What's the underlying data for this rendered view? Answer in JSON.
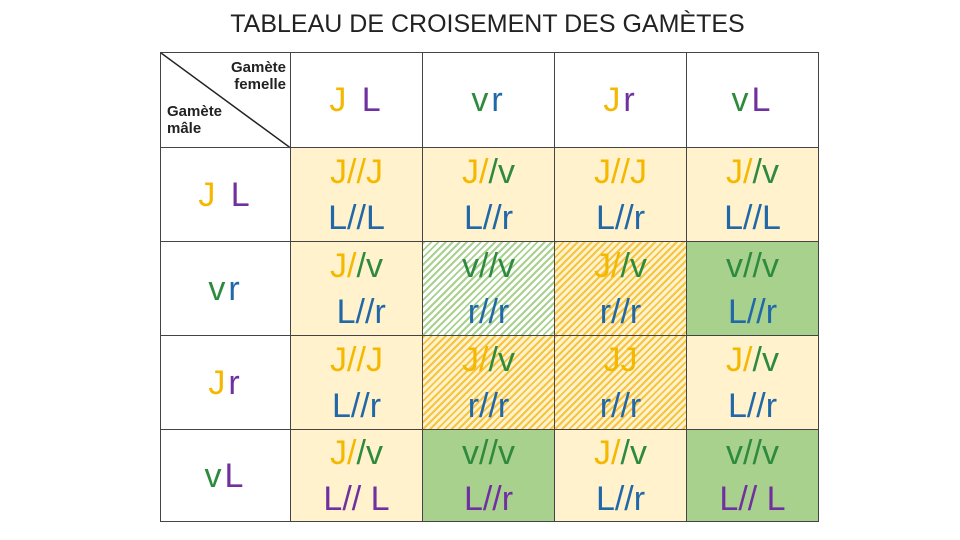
{
  "title": "TABLEAU DE CROISEMENT DES GAMÈTES",
  "table": {
    "corner": {
      "female": "Gamète femelle",
      "male": "Gamète mâle"
    },
    "columns": [
      [
        {
          "t": "J",
          "c": "#f5b800"
        },
        {
          "t": " L",
          "c": "#7030a0"
        }
      ],
      [
        {
          "t": "v",
          "c": "#2e8b3e"
        },
        {
          "t": "r",
          "c": "#2068a8"
        }
      ],
      [
        {
          "t": "J",
          "c": "#f5b800"
        },
        {
          "t": "r",
          "c": "#7030a0"
        }
      ],
      [
        {
          "t": "v",
          "c": "#2e8b3e"
        },
        {
          "t": "L",
          "c": "#7030a0"
        }
      ]
    ],
    "rows": [
      {
        "header": [
          {
            "t": "J",
            "c": "#f5b800"
          },
          {
            "t": " L",
            "c": "#7030a0"
          }
        ],
        "cells": [
          {
            "fill": "cream",
            "lines": [
              [
                {
                  "t": "J//J",
                  "c": "#f5b800"
                }
              ],
              [
                {
                  "t": "L//L",
                  "c": "#2068a8"
                }
              ]
            ]
          },
          {
            "fill": "cream",
            "lines": [
              [
                {
                  "t": "J/",
                  "c": "#f5b800"
                },
                {
                  "t": "/v",
                  "c": "#2e8b3e"
                }
              ],
              [
                {
                  "t": "L//r",
                  "c": "#2068a8"
                }
              ]
            ]
          },
          {
            "fill": "cream",
            "lines": [
              [
                {
                  "t": "J//J",
                  "c": "#f5b800"
                }
              ],
              [
                {
                  "t": "L//r",
                  "c": "#2068a8"
                }
              ]
            ]
          },
          {
            "fill": "cream",
            "lines": [
              [
                {
                  "t": "J/",
                  "c": "#f5b800"
                },
                {
                  "t": "/v",
                  "c": "#2e8b3e"
                }
              ],
              [
                {
                  "t": "L//L",
                  "c": "#2068a8"
                }
              ]
            ]
          }
        ]
      },
      {
        "header": [
          {
            "t": "v",
            "c": "#2e8b3e"
          },
          {
            "t": "r",
            "c": "#2068a8"
          }
        ],
        "cells": [
          {
            "fill": "cream",
            "lines": [
              [
                {
                  "t": "J/",
                  "c": "#f5b800"
                },
                {
                  "t": "/v",
                  "c": "#2e8b3e"
                }
              ],
              [
                {
                  "t": " L//r",
                  "c": "#2068a8"
                }
              ]
            ]
          },
          {
            "fill": "hatch-green",
            "lines": [
              [
                {
                  "t": "v//v",
                  "c": "#2e8b3e"
                }
              ],
              [
                {
                  "t": "r//r",
                  "c": "#2068a8"
                }
              ]
            ]
          },
          {
            "fill": "hatch-yellow",
            "lines": [
              [
                {
                  "t": "J/",
                  "c": "#f5b800"
                },
                {
                  "t": "/v",
                  "c": "#2e8b3e"
                }
              ],
              [
                {
                  "t": "r//r",
                  "c": "#2068a8"
                }
              ]
            ]
          },
          {
            "fill": "green",
            "lines": [
              [
                {
                  "t": "v//v",
                  "c": "#2e8b3e"
                }
              ],
              [
                {
                  "t": "L//r",
                  "c": "#2068a8"
                }
              ]
            ]
          }
        ]
      },
      {
        "header": [
          {
            "t": "J",
            "c": "#f5b800"
          },
          {
            "t": "r",
            "c": "#7030a0"
          }
        ],
        "cells": [
          {
            "fill": "cream",
            "lines": [
              [
                {
                  "t": "J//J",
                  "c": "#f5b800"
                }
              ],
              [
                {
                  "t": "L//r",
                  "c": "#2068a8"
                }
              ]
            ]
          },
          {
            "fill": "hatch-yellow",
            "lines": [
              [
                {
                  "t": "J/",
                  "c": "#f5b800"
                },
                {
                  "t": "/v",
                  "c": "#2e8b3e"
                }
              ],
              [
                {
                  "t": "r//r",
                  "c": "#2068a8"
                }
              ]
            ]
          },
          {
            "fill": "hatch-yellow",
            "lines": [
              [
                {
                  "t": "JJ",
                  "c": "#f5b800"
                }
              ],
              [
                {
                  "t": "r//r",
                  "c": "#2068a8"
                }
              ]
            ]
          },
          {
            "fill": "cream",
            "lines": [
              [
                {
                  "t": "J/",
                  "c": "#f5b800"
                },
                {
                  "t": "/v",
                  "c": "#2e8b3e"
                }
              ],
              [
                {
                  "t": "L//r",
                  "c": "#2068a8"
                }
              ]
            ]
          }
        ]
      },
      {
        "header": [
          {
            "t": "v",
            "c": "#2e8b3e"
          },
          {
            "t": "L",
            "c": "#7030a0"
          }
        ],
        "cells": [
          {
            "fill": "cream",
            "lines": [
              [
                {
                  "t": "J/",
                  "c": "#f5b800"
                },
                {
                  "t": "/v",
                  "c": "#2e8b3e"
                }
              ],
              [
                {
                  "t": "L// L",
                  "c": "#7030a0"
                }
              ]
            ]
          },
          {
            "fill": "green",
            "lines": [
              [
                {
                  "t": "v//v",
                  "c": "#2e8b3e"
                }
              ],
              [
                {
                  "t": "L//r",
                  "c": "#7030a0"
                }
              ]
            ]
          },
          {
            "fill": "cream",
            "lines": [
              [
                {
                  "t": "J/",
                  "c": "#f5b800"
                },
                {
                  "t": "/v",
                  "c": "#2e8b3e"
                }
              ],
              [
                {
                  "t": "L//r",
                  "c": "#2068a8"
                }
              ]
            ]
          },
          {
            "fill": "green",
            "lines": [
              [
                {
                  "t": "v//v",
                  "c": "#2e8b3e"
                }
              ],
              [
                {
                  "t": "L// L",
                  "c": "#7030a0"
                }
              ]
            ]
          }
        ]
      }
    ]
  }
}
